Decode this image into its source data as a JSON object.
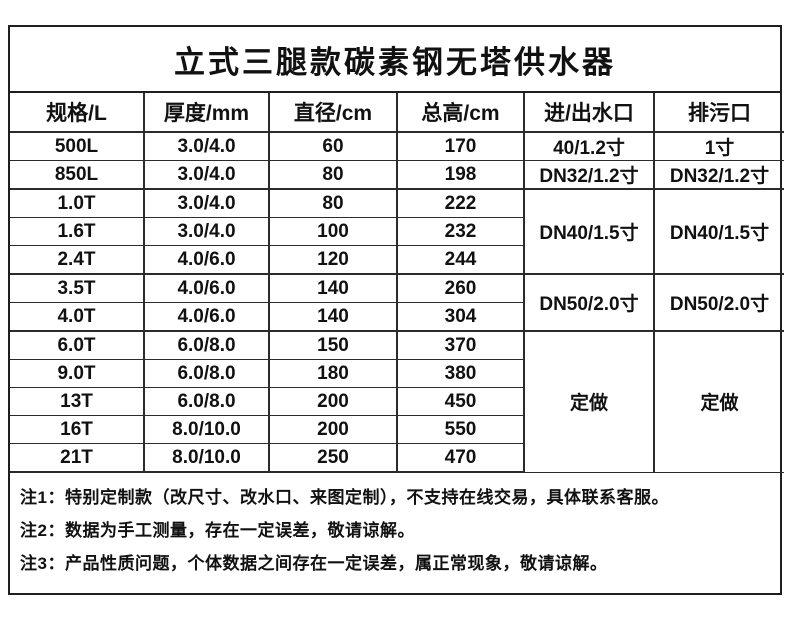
{
  "page": {
    "title": "立式三腿款碳素钢无塔供水器"
  },
  "colors": {
    "background": "#ffffff",
    "border": "#1f1f1f",
    "text": "#111111"
  },
  "table": {
    "headers": [
      "规格/L",
      "厚度/mm",
      "直径/cm",
      "总高/cm",
      "进/出水口",
      "排污口"
    ],
    "rows": [
      {
        "thick_top": false,
        "cells": [
          {
            "text": "500L"
          },
          {
            "text": "3.0/4.0"
          },
          {
            "text": "60"
          },
          {
            "text": "170"
          },
          {
            "text": "40/1.2寸"
          },
          {
            "text": "1寸"
          }
        ]
      },
      {
        "thick_top": false,
        "cells": [
          {
            "text": "850L"
          },
          {
            "text": "3.0/4.0"
          },
          {
            "text": "80"
          },
          {
            "text": "198"
          },
          {
            "text": "DN32/1.2寸"
          },
          {
            "text": "DN32/1.2寸"
          }
        ]
      },
      {
        "thick_top": true,
        "cells": [
          {
            "text": "1.0T"
          },
          {
            "text": "3.0/4.0"
          },
          {
            "text": "80"
          },
          {
            "text": "222"
          },
          {
            "text": "DN40/1.5寸",
            "rowspan": 3
          },
          {
            "text": "DN40/1.5寸",
            "rowspan": 3
          }
        ]
      },
      {
        "thick_top": false,
        "cells": [
          {
            "text": "1.6T"
          },
          {
            "text": "3.0/4.0"
          },
          {
            "text": "100"
          },
          {
            "text": "232"
          }
        ]
      },
      {
        "thick_top": false,
        "cells": [
          {
            "text": "2.4T"
          },
          {
            "text": "4.0/6.0"
          },
          {
            "text": "120"
          },
          {
            "text": "244"
          }
        ]
      },
      {
        "thick_top": true,
        "cells": [
          {
            "text": "3.5T"
          },
          {
            "text": "4.0/6.0"
          },
          {
            "text": "140"
          },
          {
            "text": "260"
          },
          {
            "text": "DN50/2.0寸",
            "rowspan": 2
          },
          {
            "text": "DN50/2.0寸",
            "rowspan": 2
          }
        ]
      },
      {
        "thick_top": false,
        "cells": [
          {
            "text": "4.0T"
          },
          {
            "text": "4.0/6.0"
          },
          {
            "text": "140"
          },
          {
            "text": "304"
          }
        ]
      },
      {
        "thick_top": true,
        "cells": [
          {
            "text": "6.0T"
          },
          {
            "text": "6.0/8.0"
          },
          {
            "text": "150"
          },
          {
            "text": "370"
          },
          {
            "text": "定做",
            "rowspan": 5
          },
          {
            "text": "定做",
            "rowspan": 5
          }
        ]
      },
      {
        "thick_top": false,
        "cells": [
          {
            "text": "9.0T"
          },
          {
            "text": "6.0/8.0"
          },
          {
            "text": "180"
          },
          {
            "text": "380"
          }
        ]
      },
      {
        "thick_top": false,
        "cells": [
          {
            "text": "13T"
          },
          {
            "text": "6.0/8.0"
          },
          {
            "text": "200"
          },
          {
            "text": "450"
          }
        ]
      },
      {
        "thick_top": false,
        "cells": [
          {
            "text": "16T"
          },
          {
            "text": "8.0/10.0"
          },
          {
            "text": "200"
          },
          {
            "text": "550"
          }
        ]
      },
      {
        "thick_top": false,
        "cells": [
          {
            "text": "21T"
          },
          {
            "text": "8.0/10.0"
          },
          {
            "text": "250"
          },
          {
            "text": "470"
          }
        ]
      }
    ]
  },
  "notes": [
    "注1：特别定制款（改尺寸、改水口、来图定制），不支持在线交易，具体联系客服。",
    "注2：数据为手工测量，存在一定误差，敬请谅解。",
    "注3：产品性质问题，个体数据之间存在一定误差，属正常现象，敬请谅解。"
  ]
}
